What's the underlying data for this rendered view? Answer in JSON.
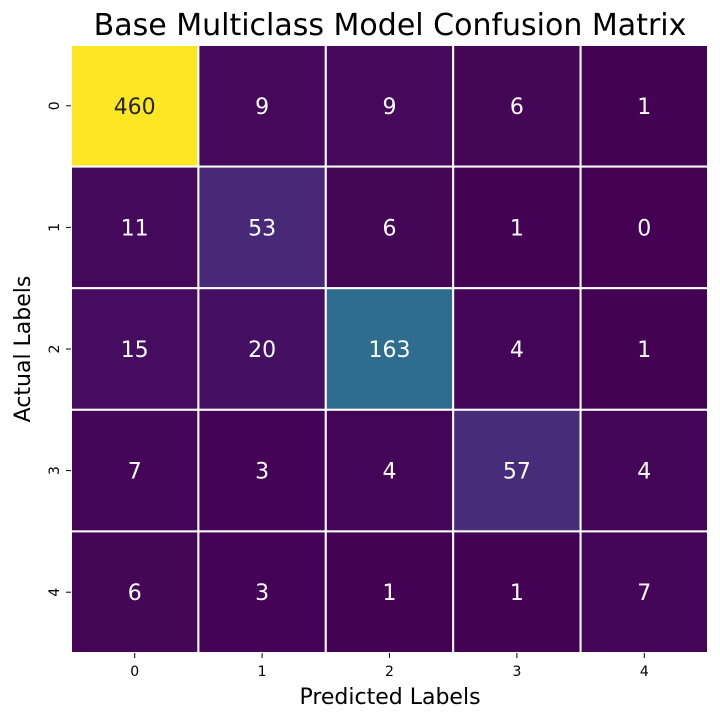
{
  "chart_data": {
    "type": "heatmap",
    "title": "Base Multiclass Model Confusion Matrix",
    "xlabel": "Predicted Labels",
    "ylabel": "Actual Labels",
    "x_categories": [
      "0",
      "1",
      "2",
      "3",
      "4"
    ],
    "y_categories": [
      "0",
      "1",
      "2",
      "3",
      "4"
    ],
    "values": [
      [
        460,
        9,
        9,
        6,
        1
      ],
      [
        11,
        53,
        6,
        1,
        0
      ],
      [
        15,
        20,
        163,
        4,
        1
      ],
      [
        7,
        3,
        4,
        57,
        4
      ],
      [
        6,
        3,
        1,
        1,
        7
      ]
    ],
    "colormap": "viridis",
    "value_range": [
      0,
      460
    ],
    "annotations": true,
    "colorbar": false,
    "annotation_color": "#ffffff",
    "grid_line_color": "#ffffff"
  }
}
